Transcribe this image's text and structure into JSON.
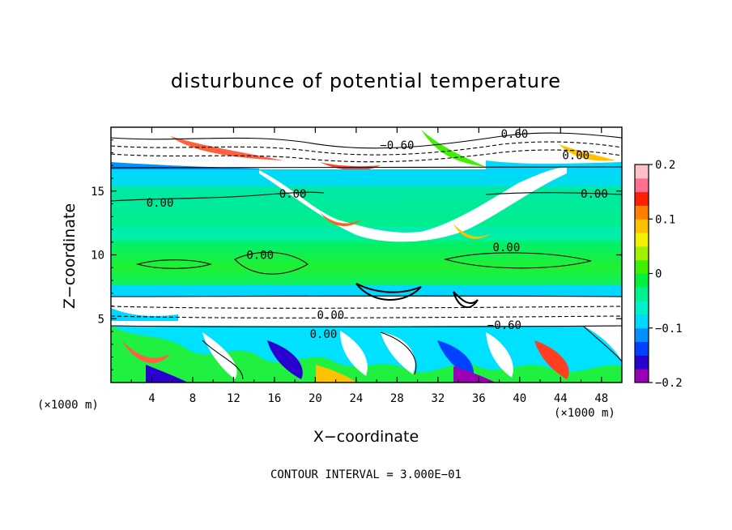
{
  "chart_data": {
    "type": "heatmap",
    "title": "disturbunce of potential temperature",
    "xlabel": "X−coordinate",
    "ylabel": "Z−coordinate",
    "x_unit": "(×1000 m)",
    "xlim": [
      0,
      50
    ],
    "ylim": [
      0,
      20
    ],
    "x_ticks": [
      4,
      8,
      12,
      16,
      20,
      24,
      28,
      32,
      36,
      40,
      44,
      48
    ],
    "y_ticks": [
      5,
      10,
      15
    ],
    "colorbar": {
      "ticks": [
        0.2,
        0.1,
        0,
        -0.1,
        -0.2
      ],
      "tick_labels": [
        "0.2",
        "0.1",
        "0",
        "−0.1",
        "−0.2"
      ],
      "range": [
        -0.2,
        0.2
      ],
      "colors": [
        "#9a00b4",
        "#2a00d0",
        "#0040ff",
        "#0090ff",
        "#00d8ff",
        "#00f0c8",
        "#00f090",
        "#00f040",
        "#40f000",
        "#a0f000",
        "#f0f000",
        "#ffc000",
        "#ff8000",
        "#ff2000",
        "#ff7090",
        "#ffc0c8"
      ]
    },
    "contour_labels": [
      {
        "text": "0.60",
        "x": 39.5,
        "y": 19.5
      },
      {
        "text": "−0.60",
        "x": 28,
        "y": 18.6
      },
      {
        "text": "0.00",
        "x": 45.5,
        "y": 17.8
      },
      {
        "text": "0.00",
        "x": 4.8,
        "y": 14.1
      },
      {
        "text": "0.00",
        "x": 17.8,
        "y": 14.8
      },
      {
        "text": "0.00",
        "x": 47.3,
        "y": 14.8
      },
      {
        "text": "0.00",
        "x": 38.7,
        "y": 10.6
      },
      {
        "text": "0.00",
        "x": 14.6,
        "y": 10.0
      },
      {
        "text": "0.00",
        "x": 21.5,
        "y": 5.3
      },
      {
        "text": "0.00",
        "x": 20.8,
        "y": 3.8
      },
      {
        "text": "−0.60",
        "x": 38.5,
        "y": 4.5
      }
    ],
    "contour_interval_label": "CONTOUR INTERVAL = 3.000E−01"
  }
}
